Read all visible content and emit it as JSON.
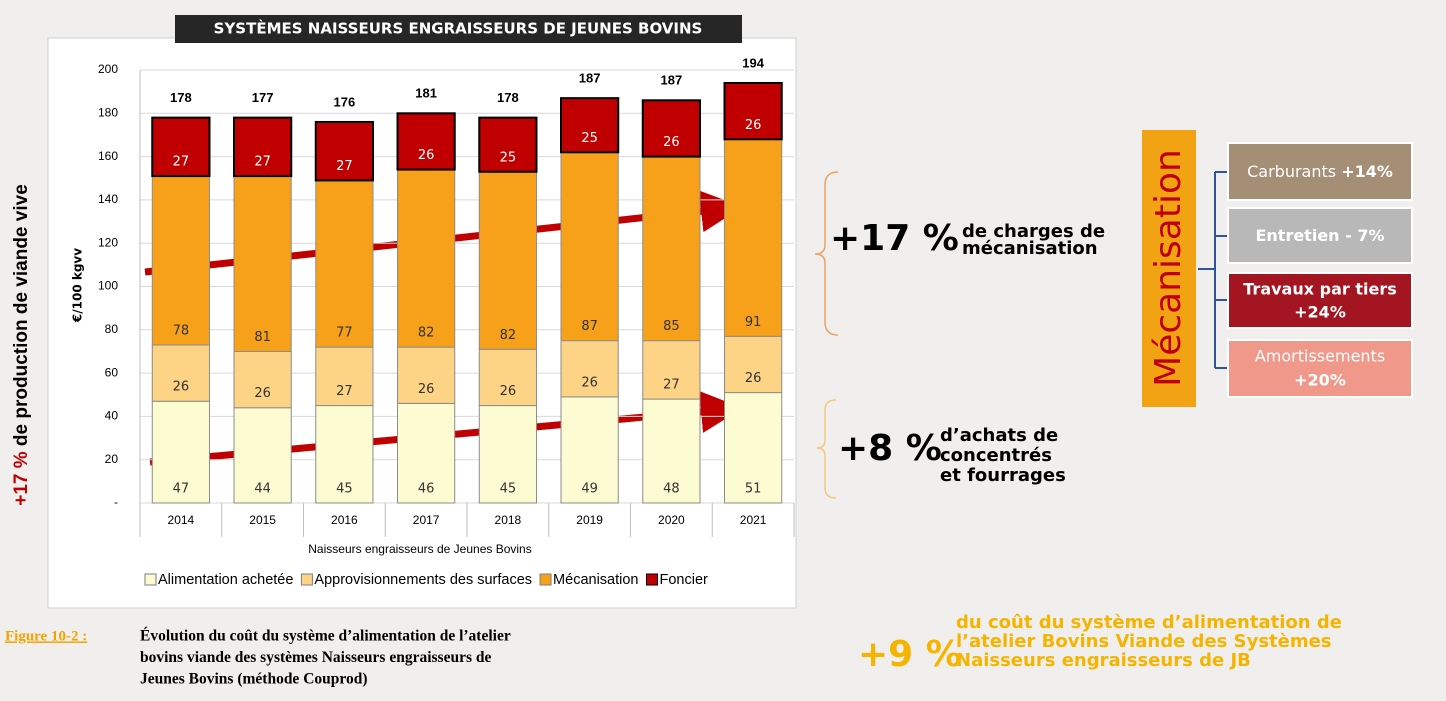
{
  "side_label": {
    "highlight": "+17 %",
    "text": "de production de viande vive"
  },
  "chart_data": {
    "type": "bar",
    "stacked": true,
    "title": "SYSTÈMES NAISSEURS ENGRAISSEURS DE JEUNES BOVINS",
    "x_label": "Naisseurs engraisseurs de Jeunes Bovins",
    "y_label": "€/100 kgvv",
    "categories": [
      "2014",
      "2015",
      "2016",
      "2017",
      "2018",
      "2019",
      "2020",
      "2021"
    ],
    "series": [
      {
        "name": "Alimentation achetée",
        "color": "#fdfbd2",
        "values": [
          47,
          44,
          45,
          46,
          45,
          49,
          48,
          51
        ]
      },
      {
        "name": "Approvisionnements des surfaces",
        "color": "#fdd386",
        "values": [
          26,
          26,
          27,
          26,
          26,
          26,
          27,
          26
        ]
      },
      {
        "name": "Mécanisation",
        "color": "#f7a11a",
        "values": [
          78,
          81,
          77,
          82,
          82,
          87,
          85,
          91
        ]
      },
      {
        "name": "Foncier",
        "color": "#c00000",
        "values": [
          27,
          27,
          27,
          26,
          25,
          25,
          26,
          26
        ]
      }
    ],
    "totals": [
      178,
      177,
      176,
      181,
      178,
      187,
      187,
      194
    ],
    "ylim": [
      0,
      200
    ],
    "yticks": [
      {
        "value": 0,
        "label": "-"
      },
      20,
      40,
      60,
      80,
      100,
      120,
      140,
      160,
      180,
      200
    ],
    "grid": true
  },
  "annotations": [
    {
      "value": "+17 %",
      "lines": [
        "de charges de",
        "mécanisation"
      ]
    },
    {
      "value": "+8 %",
      "lines": [
        "d’achats de",
        "concentrés",
        "et fourrages"
      ]
    },
    {
      "value": "+9 %",
      "lines": [
        "du coût du système d’alimentation de",
        "l’atelier Bovins Viande des Systèmes",
        "Naisseurs engraisseurs de JB"
      ]
    }
  ],
  "mechanisation": {
    "title": "Mécanisation",
    "items": [
      {
        "name": "Carburants",
        "change": "+14%"
      },
      {
        "name": "Entretien",
        "change": "- 7%"
      },
      {
        "name": "Travaux par tiers",
        "change": "+24%"
      },
      {
        "name": "Amortissements",
        "change": "+20%"
      }
    ]
  },
  "caption": {
    "label": "Figure 10-2 :",
    "lines": [
      "Évolution du coût du système d’alimentation de l’atelier",
      "bovins viande des systèmes Naisseurs engraisseurs de",
      "Jeunes Bovins (méthode Couprod)"
    ]
  }
}
